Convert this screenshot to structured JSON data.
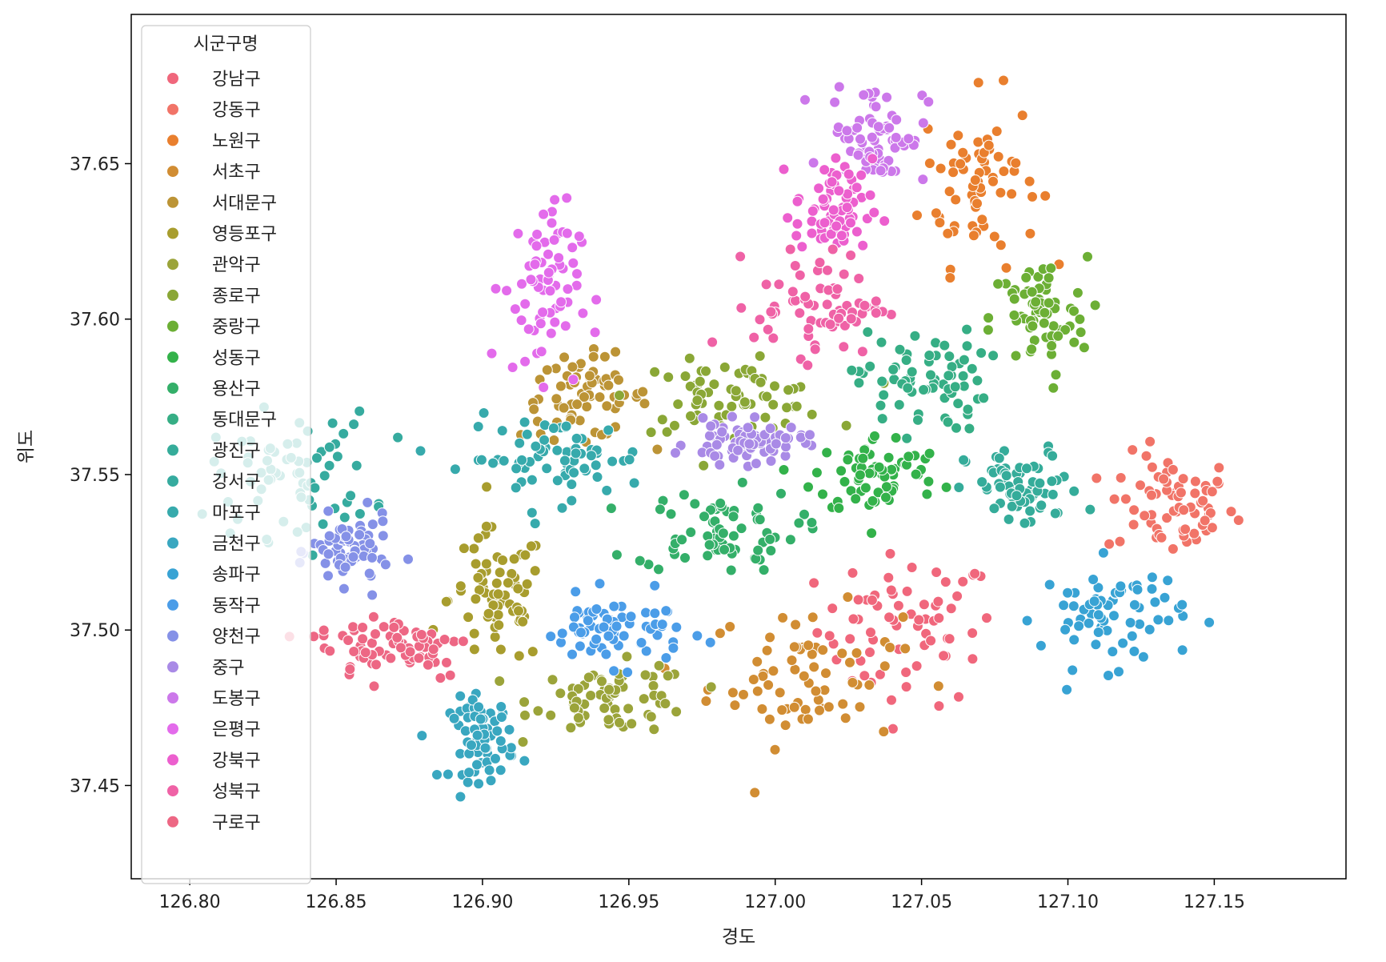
{
  "chart_data": {
    "type": "scatter",
    "title": "",
    "xlabel": "경도",
    "ylabel": "위도",
    "xlim": [
      126.78,
      127.195
    ],
    "ylim": [
      37.42,
      37.698
    ],
    "xticks": [
      126.8,
      126.85,
      126.9,
      126.95,
      127.0,
      127.05,
      127.1,
      127.15
    ],
    "xtick_labels": [
      "126.80",
      "126.85",
      "126.90",
      "126.95",
      "127.00",
      "127.05",
      "127.10",
      "127.15"
    ],
    "yticks": [
      37.45,
      37.5,
      37.55,
      37.6,
      37.65
    ],
    "ytick_labels": [
      "37.45",
      "37.50",
      "37.55",
      "37.60",
      "37.65"
    ],
    "grid": false,
    "legend": {
      "title": "시군구명",
      "placement": "upper-left"
    },
    "series": [
      {
        "name": "강남구",
        "color": "#f0677c",
        "center": [
          127.045,
          37.5
        ],
        "spread": [
          0.028,
          0.022
        ]
      },
      {
        "name": "강동구",
        "color": "#f17468",
        "center": [
          127.135,
          37.54
        ],
        "spread": [
          0.02,
          0.015
        ]
      },
      {
        "name": "노원구",
        "color": "#e97f2e",
        "center": [
          127.07,
          37.645
        ],
        "spread": [
          0.018,
          0.025
        ]
      },
      {
        "name": "서초구",
        "color": "#d18d33",
        "center": [
          127.01,
          37.485
        ],
        "spread": [
          0.03,
          0.02
        ]
      },
      {
        "name": "서대문구",
        "color": "#bc9436",
        "center": [
          126.935,
          37.575
        ],
        "spread": [
          0.02,
          0.012
        ]
      },
      {
        "name": "영등포구",
        "color": "#a89d2e",
        "center": [
          126.905,
          37.51
        ],
        "spread": [
          0.015,
          0.02
        ]
      },
      {
        "name": "관악구",
        "color": "#9ba43a",
        "center": [
          126.945,
          37.478
        ],
        "spread": [
          0.025,
          0.01
        ]
      },
      {
        "name": "종로구",
        "color": "#8aa736",
        "center": [
          126.985,
          37.575
        ],
        "spread": [
          0.03,
          0.01
        ]
      },
      {
        "name": "중랑구",
        "color": "#6caf35",
        "center": [
          127.09,
          37.6
        ],
        "spread": [
          0.015,
          0.018
        ]
      },
      {
        "name": "성동구",
        "color": "#33b24a",
        "center": [
          127.035,
          37.55
        ],
        "spread": [
          0.02,
          0.012
        ]
      },
      {
        "name": "용산구",
        "color": "#34af69",
        "center": [
          126.98,
          37.532
        ],
        "spread": [
          0.025,
          0.012
        ]
      },
      {
        "name": "동대문구",
        "color": "#36ae85",
        "center": [
          127.05,
          37.58
        ],
        "spread": [
          0.02,
          0.015
        ]
      },
      {
        "name": "광진구",
        "color": "#35ac9a",
        "center": [
          127.085,
          37.545
        ],
        "spread": [
          0.018,
          0.012
        ]
      },
      {
        "name": "강서구",
        "color": "#36ab9f",
        "center": [
          126.835,
          37.55
        ],
        "spread": [
          0.025,
          0.018
        ]
      },
      {
        "name": "마포구",
        "color": "#37aaac",
        "center": [
          126.925,
          37.555
        ],
        "spread": [
          0.028,
          0.012
        ]
      },
      {
        "name": "금천구",
        "color": "#39a7c0",
        "center": [
          126.9,
          37.465
        ],
        "spread": [
          0.01,
          0.012
        ]
      },
      {
        "name": "송파구",
        "color": "#38a3d4",
        "center": [
          127.115,
          37.505
        ],
        "spread": [
          0.022,
          0.015
        ]
      },
      {
        "name": "동작구",
        "color": "#4b9de8",
        "center": [
          126.945,
          37.5
        ],
        "spread": [
          0.022,
          0.01
        ]
      },
      {
        "name": "양천구",
        "color": "#8591e7",
        "center": [
          126.855,
          37.525
        ],
        "spread": [
          0.012,
          0.01
        ]
      },
      {
        "name": "중구",
        "color": "#a98ae6",
        "center": [
          126.99,
          37.56
        ],
        "spread": [
          0.018,
          0.006
        ]
      },
      {
        "name": "도봉구",
        "color": "#cc78ea",
        "center": [
          127.035,
          37.66
        ],
        "spread": [
          0.015,
          0.015
        ]
      },
      {
        "name": "은평구",
        "color": "#e36beb",
        "center": [
          126.92,
          37.61
        ],
        "spread": [
          0.012,
          0.025
        ]
      },
      {
        "name": "강북구",
        "color": "#ec5fce",
        "center": [
          127.02,
          37.635
        ],
        "spread": [
          0.012,
          0.015
        ]
      },
      {
        "name": "성북구",
        "color": "#ef62a6",
        "center": [
          127.015,
          37.605
        ],
        "spread": [
          0.02,
          0.015
        ]
      },
      {
        "name": "구로구",
        "color": "#ed6784",
        "center": [
          126.87,
          37.495
        ],
        "spread": [
          0.025,
          0.01
        ]
      }
    ]
  }
}
